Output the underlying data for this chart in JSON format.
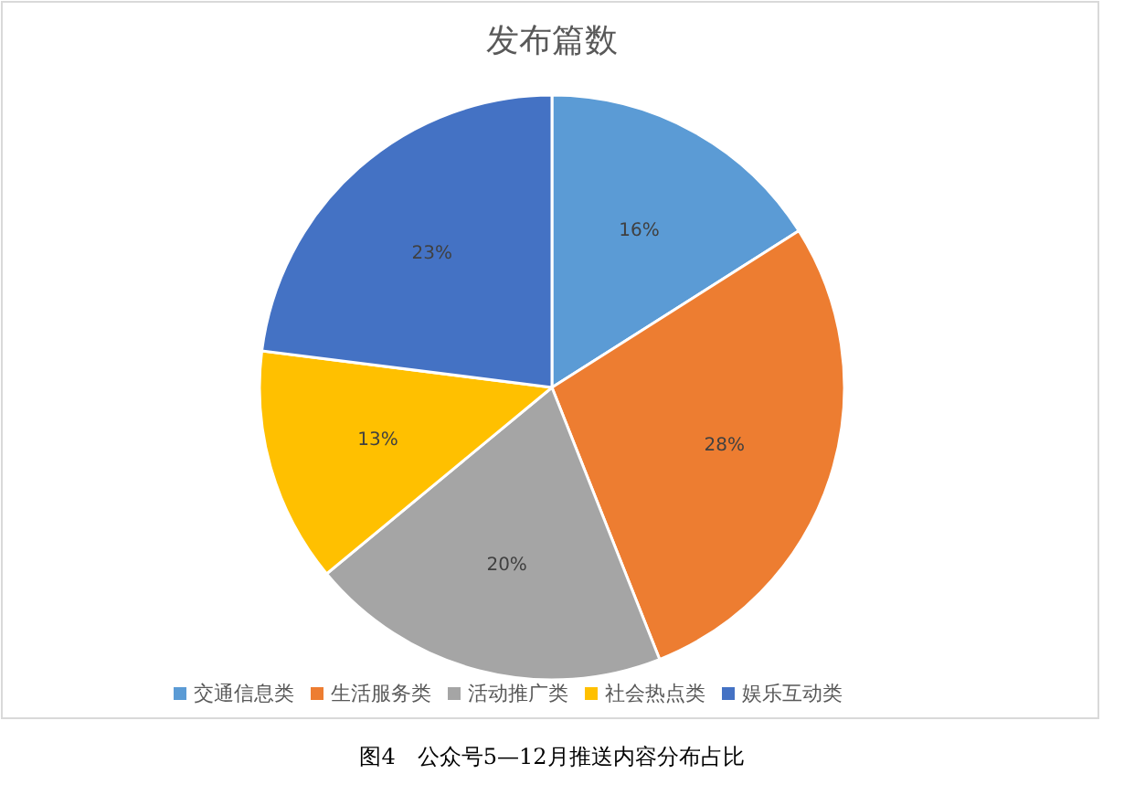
{
  "chart_data": {
    "type": "pie",
    "title": "发布篇数",
    "categories": [
      "交通信息类",
      "生活服务类",
      "活动推广类",
      "社会热点类",
      "娱乐互动类"
    ],
    "values": [
      16,
      28,
      20,
      13,
      23
    ],
    "value_labels": [
      "16%",
      "28%",
      "20%",
      "13%",
      "23%"
    ],
    "colors": [
      "#5b9bd5",
      "#ed7d31",
      "#a5a5a5",
      "#ffc000",
      "#4472c4"
    ],
    "legend": "bottom",
    "annotations": [
      "图4　公众号5—12月推送内容分布占比"
    ]
  }
}
